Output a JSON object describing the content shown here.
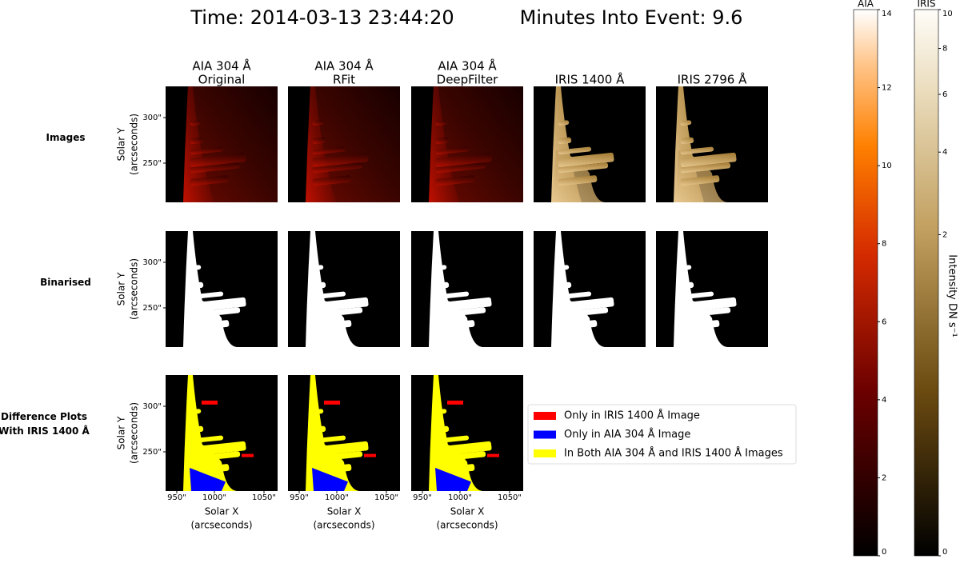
{
  "header": {
    "time": "Time: 2014-03-13 23:44:20",
    "minutes": "Minutes Into Event: 9.6"
  },
  "columns": [
    {
      "line1": "AIA 304 Å",
      "line2": "Original"
    },
    {
      "line1": "AIA 304 Å",
      "line2": "RFit"
    },
    {
      "line1": "AIA 304 Å",
      "line2": "DeepFilter"
    },
    {
      "line1": "IRIS 1400 Å"
    },
    {
      "line1": "IRIS 2796 Å"
    }
  ],
  "rows": [
    {
      "line1": "Images"
    },
    {
      "line1": "Binarised"
    },
    {
      "line1": "Difference Plots",
      "line2": "With IRIS 1400 Å"
    }
  ],
  "y_axis": {
    "label": "Solar Y",
    "unit": "(arcseconds)",
    "ticks": [
      "300\"",
      "250\""
    ]
  },
  "x_axis": {
    "label": "Solar X",
    "unit": "(arcseconds)",
    "ticks": [
      "950\"",
      "1000\"",
      "1050\""
    ]
  },
  "legend": [
    {
      "label": "Only in IRIS 1400 Å Image",
      "color": "#ff0000"
    },
    {
      "label": "Only in AIA 304 Å Image",
      "color": "#0000ff"
    },
    {
      "label": "In Both AIA 304 Å and IRIS 1400 Å Images",
      "color": "#ffff00"
    }
  ],
  "colorbars": [
    {
      "name": "AIA",
      "lim": [
        0,
        14
      ],
      "ticks": [
        0,
        2,
        4,
        6,
        8,
        10,
        12,
        14
      ]
    },
    {
      "name": "IRIS",
      "lim": [
        0,
        10
      ],
      "ticks": [
        0,
        2,
        4,
        6,
        8,
        10
      ],
      "scale": "power",
      "power": 0.33
    }
  ],
  "colorbar_label": "Intensity DN s⁻¹"
}
